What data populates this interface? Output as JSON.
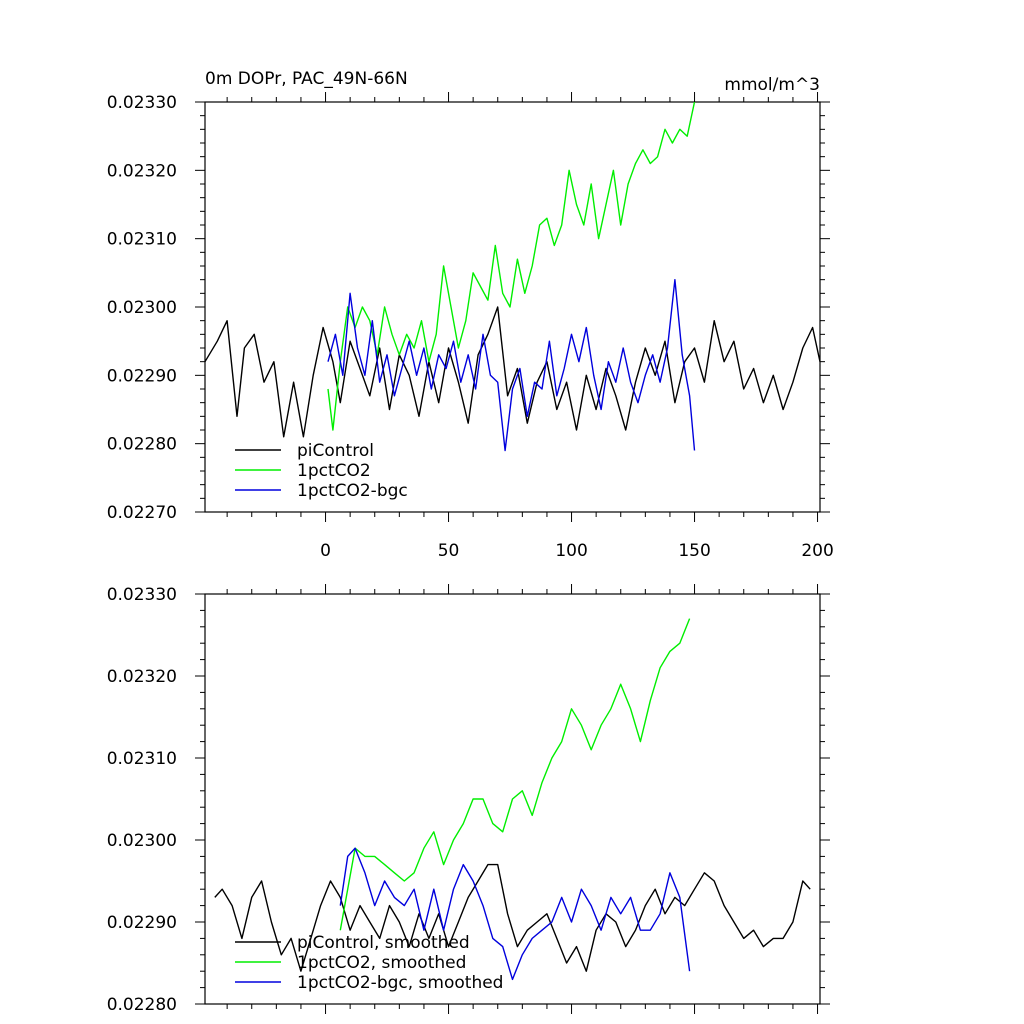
{
  "chart_data": [
    {
      "type": "line",
      "title": "0m DOPr, PAC_49N-66N",
      "units": "mmol/m^3",
      "xlabel": "",
      "ylabel": "",
      "xlim": [
        -49,
        201
      ],
      "ylim": [
        0.0227,
        0.0233
      ],
      "x_ticks": [
        0,
        50,
        100,
        150,
        200
      ],
      "x_tick_labels": [
        "0",
        "50",
        "100",
        "150",
        "200"
      ],
      "y_ticks": [
        0.0227,
        0.0228,
        0.0229,
        0.023,
        0.0231,
        0.0232,
        0.0233
      ],
      "y_tick_labels": [
        "0.02270",
        "0.02280",
        "0.02290",
        "0.02300",
        "0.02310",
        "0.02320",
        "0.02330"
      ],
      "legend_position": "bottom-left",
      "series": [
        {
          "name": "piControl",
          "color": "#000000",
          "x": [
            -49,
            -44,
            -40,
            -36,
            -33,
            -29,
            -25,
            -21,
            -17,
            -13,
            -9,
            -5,
            -1,
            3,
            6,
            10,
            14,
            18,
            22,
            26,
            30,
            34,
            38,
            42,
            46,
            50,
            54,
            58,
            62,
            66,
            70,
            74,
            78,
            82,
            86,
            90,
            94,
            98,
            102,
            106,
            110,
            114,
            118,
            122,
            126,
            130,
            134,
            138,
            142,
            146,
            150,
            154,
            158,
            162,
            166,
            170,
            174,
            178,
            182,
            186,
            190,
            194,
            198,
            201
          ],
          "values": [
            0.02292,
            0.02295,
            0.02298,
            0.02284,
            0.02294,
            0.02296,
            0.02289,
            0.02292,
            0.02281,
            0.02289,
            0.02281,
            0.0229,
            0.02297,
            0.02292,
            0.02286,
            0.02295,
            0.02291,
            0.02287,
            0.02294,
            0.02285,
            0.02293,
            0.0229,
            0.02284,
            0.02292,
            0.02286,
            0.02294,
            0.02289,
            0.02283,
            0.02293,
            0.02296,
            0.023,
            0.02287,
            0.02291,
            0.02283,
            0.02289,
            0.02292,
            0.02285,
            0.02289,
            0.02282,
            0.0229,
            0.02285,
            0.02291,
            0.02287,
            0.02282,
            0.02289,
            0.02294,
            0.0229,
            0.02295,
            0.02286,
            0.02292,
            0.02294,
            0.02289,
            0.02298,
            0.02292,
            0.02295,
            0.02288,
            0.02291,
            0.02286,
            0.0229,
            0.02285,
            0.02289,
            0.02294,
            0.02297,
            0.02292
          ]
        },
        {
          "name": "1pctCO2",
          "color": "#00ee00",
          "x": [
            1,
            3,
            6,
            9,
            12,
            15,
            18,
            21,
            24,
            27,
            30,
            33,
            36,
            39,
            42,
            45,
            48,
            51,
            54,
            57,
            60,
            63,
            66,
            69,
            72,
            75,
            78,
            81,
            84,
            87,
            90,
            93,
            96,
            99,
            102,
            105,
            108,
            111,
            114,
            117,
            120,
            123,
            126,
            129,
            132,
            135,
            138,
            141,
            144,
            147,
            150
          ],
          "values": [
            0.02288,
            0.02282,
            0.02292,
            0.023,
            0.02297,
            0.023,
            0.02298,
            0.02293,
            0.023,
            0.02296,
            0.02293,
            0.02296,
            0.02294,
            0.02298,
            0.02292,
            0.02296,
            0.02306,
            0.023,
            0.02294,
            0.02298,
            0.02305,
            0.02303,
            0.02301,
            0.02309,
            0.02302,
            0.023,
            0.02307,
            0.02302,
            0.02306,
            0.02312,
            0.02313,
            0.02309,
            0.02312,
            0.0232,
            0.02315,
            0.02312,
            0.02318,
            0.0231,
            0.02315,
            0.0232,
            0.02312,
            0.02318,
            0.02321,
            0.02323,
            0.02321,
            0.02322,
            0.02326,
            0.02324,
            0.02326,
            0.02325,
            0.0233
          ]
        },
        {
          "name": "1pctCO2-bgc",
          "color": "#0000dd",
          "x": [
            1,
            4,
            7,
            10,
            13,
            16,
            19,
            22,
            25,
            28,
            31,
            34,
            37,
            40,
            43,
            46,
            49,
            52,
            55,
            58,
            61,
            64,
            67,
            70,
            73,
            76,
            79,
            82,
            85,
            88,
            91,
            94,
            97,
            100,
            103,
            106,
            109,
            112,
            115,
            118,
            121,
            124,
            127,
            130,
            133,
            136,
            139,
            142,
            145,
            148,
            150
          ],
          "values": [
            0.02292,
            0.02296,
            0.0229,
            0.02302,
            0.02294,
            0.0229,
            0.02298,
            0.02289,
            0.02293,
            0.02287,
            0.02291,
            0.02295,
            0.0229,
            0.02294,
            0.02288,
            0.02293,
            0.02291,
            0.02295,
            0.02289,
            0.02293,
            0.02288,
            0.02296,
            0.0229,
            0.02289,
            0.02279,
            0.02288,
            0.02291,
            0.02284,
            0.02289,
            0.02288,
            0.02295,
            0.02287,
            0.02291,
            0.02296,
            0.02292,
            0.02297,
            0.0229,
            0.02285,
            0.02292,
            0.02289,
            0.02294,
            0.02289,
            0.02286,
            0.0229,
            0.02293,
            0.02289,
            0.02294,
            0.02304,
            0.02293,
            0.02287,
            0.02279
          ]
        }
      ]
    },
    {
      "type": "line",
      "title": "",
      "xlabel": "",
      "ylabel": "",
      "xlim": [
        -49,
        201
      ],
      "ylim": [
        0.0228,
        0.0233
      ],
      "x_ticks": [
        0,
        50,
        100,
        150,
        200
      ],
      "x_tick_labels": [],
      "y_ticks": [
        0.0228,
        0.0229,
        0.023,
        0.0231,
        0.0232,
        0.0233
      ],
      "y_tick_labels": [
        "0.02280",
        "0.02290",
        "0.02300",
        "0.02310",
        "0.02320",
        "0.02330"
      ],
      "legend_position": "bottom-left",
      "series": [
        {
          "name": "piControl, smoothed",
          "color": "#000000",
          "x": [
            -45,
            -42,
            -38,
            -34,
            -30,
            -26,
            -22,
            -18,
            -14,
            -10,
            -6,
            -2,
            2,
            6,
            10,
            14,
            18,
            22,
            26,
            30,
            34,
            38,
            42,
            46,
            50,
            54,
            58,
            62,
            66,
            70,
            74,
            78,
            82,
            86,
            90,
            94,
            98,
            102,
            106,
            110,
            114,
            118,
            122,
            126,
            130,
            134,
            138,
            142,
            146,
            150,
            154,
            158,
            162,
            166,
            170,
            174,
            178,
            182,
            186,
            190,
            194,
            197
          ],
          "values": [
            0.02293,
            0.02294,
            0.02292,
            0.02288,
            0.02293,
            0.02295,
            0.0229,
            0.02286,
            0.02288,
            0.02284,
            0.02288,
            0.02292,
            0.02295,
            0.02293,
            0.02289,
            0.02292,
            0.0229,
            0.02288,
            0.02292,
            0.0229,
            0.02287,
            0.02291,
            0.02288,
            0.02291,
            0.02287,
            0.0229,
            0.02293,
            0.02295,
            0.02297,
            0.02297,
            0.02291,
            0.02287,
            0.02289,
            0.0229,
            0.02291,
            0.02288,
            0.02285,
            0.02287,
            0.02284,
            0.02289,
            0.02291,
            0.0229,
            0.02287,
            0.02289,
            0.02292,
            0.02294,
            0.02291,
            0.02293,
            0.02292,
            0.02294,
            0.02296,
            0.02295,
            0.02292,
            0.0229,
            0.02288,
            0.02289,
            0.02287,
            0.02288,
            0.02288,
            0.0229,
            0.02295,
            0.02294
          ]
        },
        {
          "name": "1pctCO2, smoothed",
          "color": "#00ee00",
          "x": [
            6,
            9,
            12,
            16,
            20,
            24,
            28,
            32,
            36,
            40,
            44,
            48,
            52,
            56,
            60,
            64,
            68,
            72,
            76,
            80,
            84,
            88,
            92,
            96,
            100,
            104,
            108,
            112,
            116,
            120,
            124,
            128,
            132,
            136,
            140,
            144,
            148
          ],
          "values": [
            0.02289,
            0.02294,
            0.02299,
            0.02298,
            0.02298,
            0.02297,
            0.02296,
            0.02295,
            0.02296,
            0.02299,
            0.02301,
            0.02297,
            0.023,
            0.02302,
            0.02305,
            0.02305,
            0.02302,
            0.02301,
            0.02305,
            0.02306,
            0.02303,
            0.02307,
            0.0231,
            0.02312,
            0.02316,
            0.02314,
            0.02311,
            0.02314,
            0.02316,
            0.02319,
            0.02316,
            0.02312,
            0.02317,
            0.02321,
            0.02323,
            0.02324,
            0.02327
          ]
        },
        {
          "name": "1pctCO2-bgc, smoothed",
          "color": "#0000dd",
          "x": [
            6,
            9,
            12,
            16,
            20,
            24,
            28,
            32,
            36,
            40,
            44,
            48,
            52,
            56,
            60,
            64,
            68,
            72,
            76,
            80,
            84,
            88,
            92,
            96,
            100,
            104,
            108,
            112,
            116,
            120,
            124,
            128,
            132,
            136,
            140,
            144,
            148
          ],
          "values": [
            0.02292,
            0.02298,
            0.02299,
            0.02296,
            0.02292,
            0.02295,
            0.02293,
            0.02292,
            0.02294,
            0.02289,
            0.02294,
            0.02289,
            0.02294,
            0.02297,
            0.02295,
            0.02292,
            0.02288,
            0.02287,
            0.02283,
            0.02286,
            0.02288,
            0.02289,
            0.0229,
            0.02293,
            0.0229,
            0.02294,
            0.02292,
            0.02289,
            0.02293,
            0.02291,
            0.02293,
            0.02289,
            0.02289,
            0.02291,
            0.02296,
            0.02293,
            0.02284
          ]
        }
      ]
    }
  ]
}
